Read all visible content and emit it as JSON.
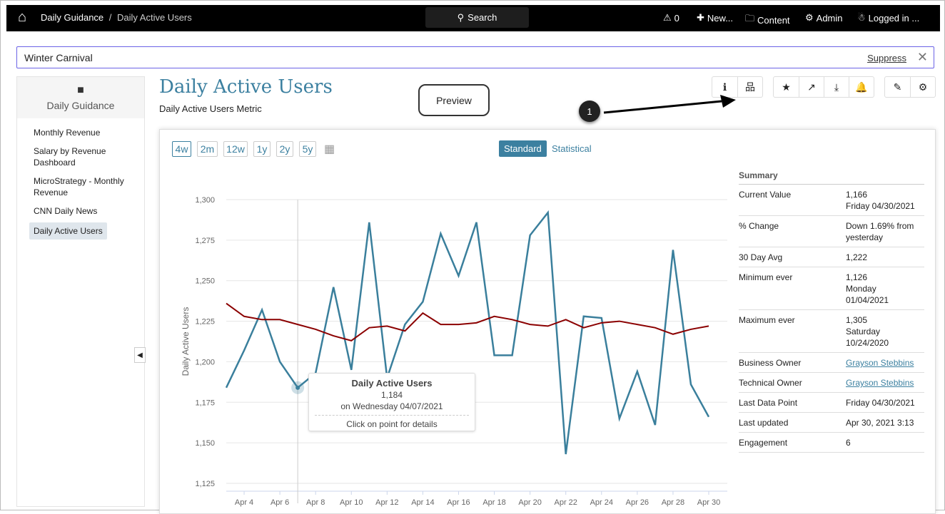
{
  "topbar": {
    "breadcrumb_root": "Daily Guidance",
    "breadcrumb_sep": " / ",
    "breadcrumb_current": "Daily Active Users",
    "search_label": "Search",
    "alerts_count": "0",
    "new_label": "New...",
    "content_label": "Content",
    "admin_label": "Admin",
    "user_label": "Logged in ..."
  },
  "banner": {
    "text": "Winter Carnival",
    "suppress_label": "Suppress",
    "close_glyph": "✕"
  },
  "sidebar": {
    "folder": "Daily Guidance",
    "items": [
      {
        "label": "Monthly Revenue"
      },
      {
        "label": "Salary by Revenue Dashboard"
      },
      {
        "label": "MicroStrategy - Monthly Revenue"
      },
      {
        "label": "CNN Daily News"
      },
      {
        "label": "Daily Active Users"
      }
    ]
  },
  "header": {
    "title": "Daily Active Users",
    "subtitle": "Daily Active Users Metric",
    "preview_label": "Preview",
    "callout_number": "1"
  },
  "ranges": [
    "4w",
    "2m",
    "12w",
    "1y",
    "2y",
    "5y"
  ],
  "view_toggle": {
    "standard": "Standard",
    "statistical": "Statistical"
  },
  "tooltip": {
    "title": "Daily Active Users",
    "value": "1,184",
    "date": "on Wednesday 04/07/2021",
    "hint": "Click on point for details"
  },
  "summary": {
    "title": "Summary",
    "rows": [
      {
        "k": "Current Value",
        "v": "1,166",
        "v2": "Friday 04/30/2021"
      },
      {
        "k": "% Change",
        "v": "Down 1.69% from yesterday"
      },
      {
        "k": "30 Day Avg",
        "v": "1,222"
      },
      {
        "k": "Minimum ever",
        "v": "1,126",
        "v2": "Monday",
        "v3": "01/04/2021"
      },
      {
        "k": "Maximum ever",
        "v": "1,305",
        "v2": "Saturday",
        "v3": "10/24/2020"
      },
      {
        "k": "Business Owner",
        "v": "Grayson Stebbins",
        "link": true
      },
      {
        "k": "Technical Owner",
        "v": "Grayson Stebbins",
        "link": true
      },
      {
        "k": "Last Data Point",
        "v": "Friday 04/30/2021"
      },
      {
        "k": "Last updated",
        "v": "Apr 30, 2021 3:13"
      },
      {
        "k": "Engagement",
        "v": "6"
      }
    ]
  },
  "colors": {
    "accent": "#3c80a0",
    "series": "#3a7f9c",
    "average": "#8b0000"
  },
  "chart_data": {
    "type": "line",
    "ylabel": "Daily Active Users",
    "ylim": [
      1125,
      1300
    ],
    "yticks": [
      "1,125",
      "1,150",
      "1,175",
      "1,200",
      "1,225",
      "1,250",
      "1,275",
      "1,300"
    ],
    "yticks_values": [
      1125,
      1150,
      1175,
      1200,
      1225,
      1250,
      1275,
      1300
    ],
    "x_days": [
      3,
      4,
      5,
      6,
      7,
      8,
      9,
      10,
      11,
      12,
      13,
      14,
      15,
      16,
      17,
      18,
      19,
      20,
      21,
      22,
      23,
      24,
      25,
      26,
      27,
      28,
      29,
      30
    ],
    "xtick_labels": [
      "Apr 4",
      "Apr 6",
      "Apr 8",
      "Apr 10",
      "Apr 12",
      "Apr 14",
      "Apr 16",
      "Apr 18",
      "Apr 20",
      "Apr 22",
      "Apr 24",
      "Apr 26",
      "Apr 28",
      "Apr 30"
    ],
    "xtick_days": [
      4,
      6,
      8,
      10,
      12,
      14,
      16,
      18,
      20,
      22,
      24,
      26,
      28,
      30
    ],
    "series": [
      {
        "name": "Daily Active Users",
        "values": [
          1184,
          1207,
          1232,
          1200,
          1184,
          1193,
          1246,
          1195,
          1286,
          1190,
          1223,
          1237,
          1279,
          1253,
          1286,
          1204,
          1204,
          1278,
          1292,
          1143,
          1228,
          1227,
          1165,
          1194,
          1161,
          1269,
          1186,
          1166
        ]
      },
      {
        "name": "Average",
        "values": [
          1236,
          1228,
          1226,
          1226,
          1223,
          1220,
          1216,
          1213,
          1221,
          1222,
          1219,
          1230,
          1223,
          1223,
          1224,
          1228,
          1226,
          1223,
          1222,
          1226,
          1221,
          1224,
          1225,
          1223,
          1221,
          1217,
          1220,
          1222
        ]
      }
    ],
    "highlight_day": 7,
    "grid": true
  }
}
